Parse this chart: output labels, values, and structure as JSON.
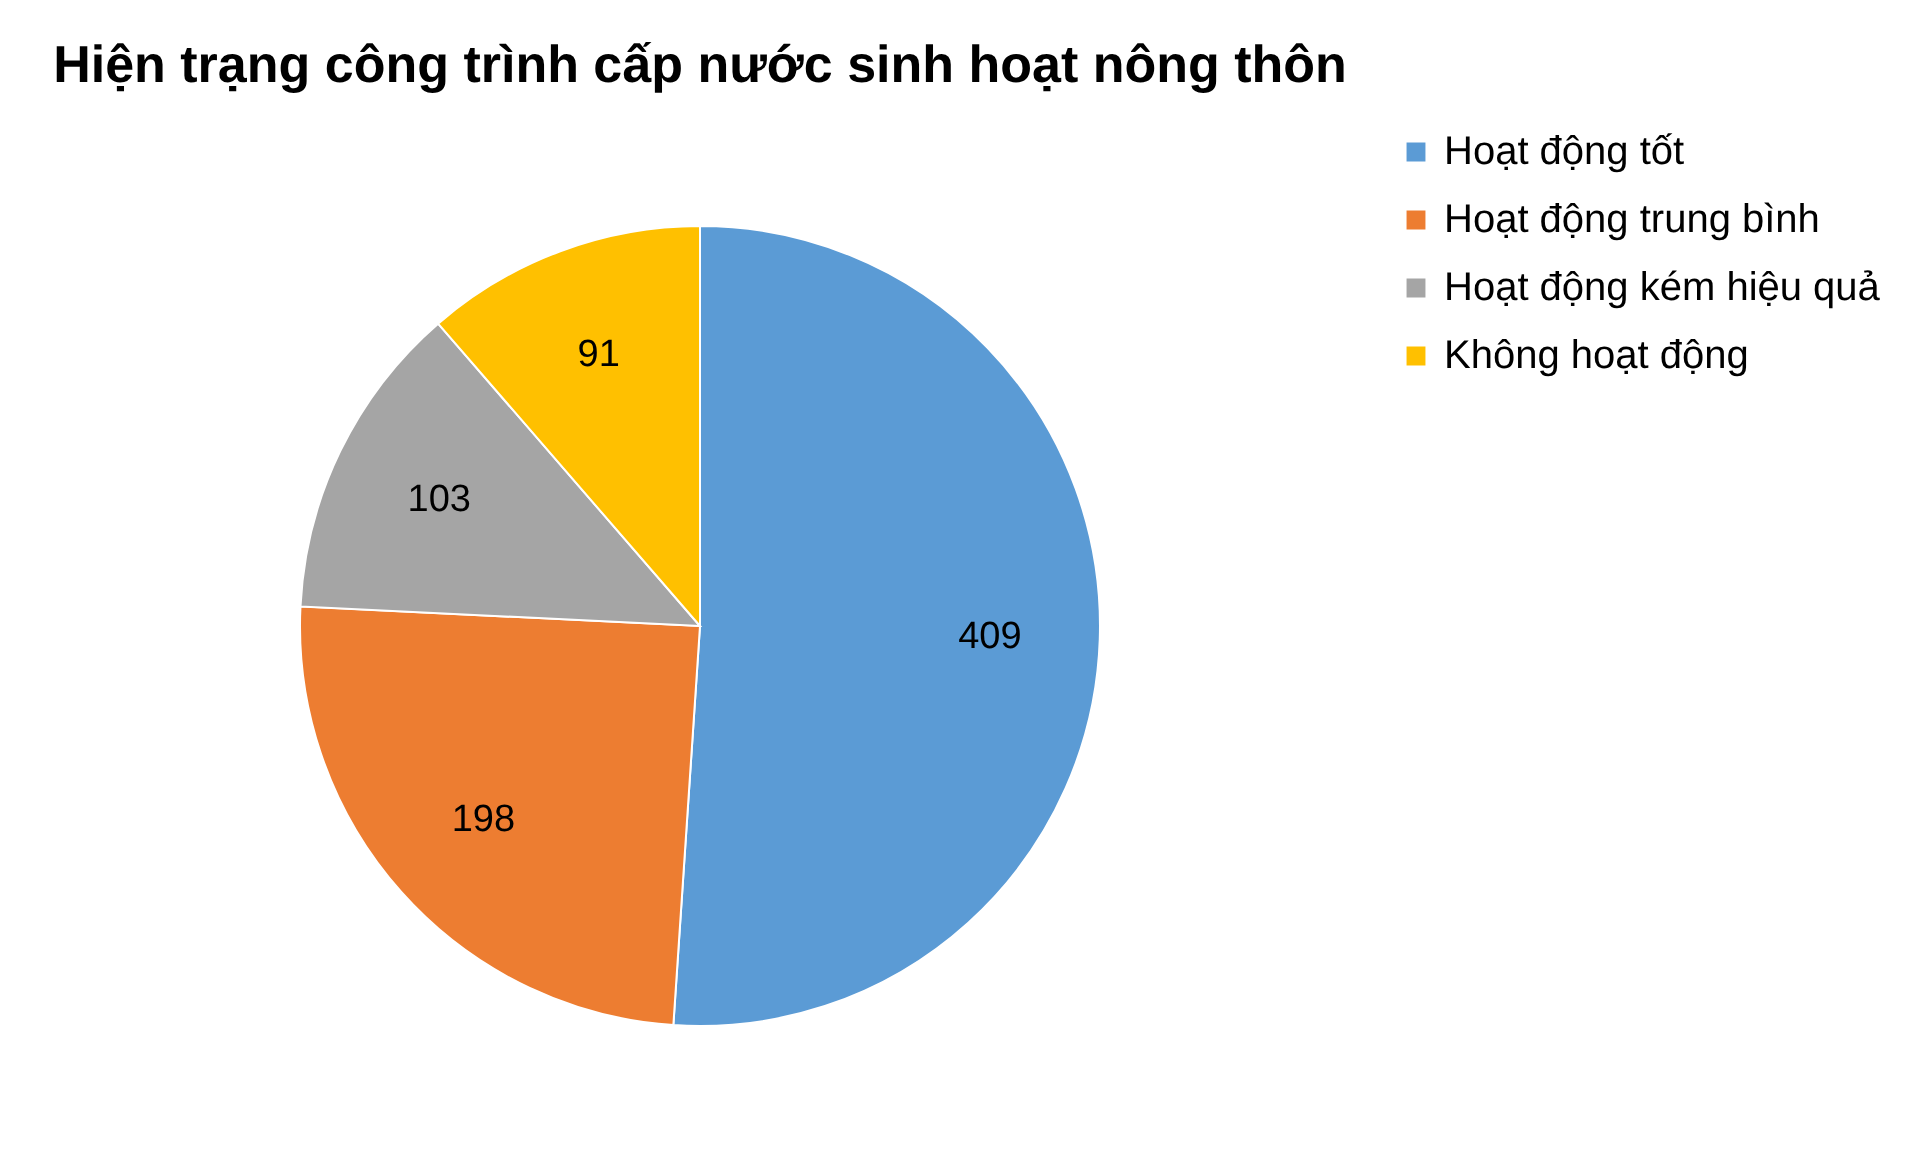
{
  "chart_data": {
    "type": "pie",
    "title": "Hiện trạng công trình cấp nước sinh hoạt nông thôn",
    "categories": [
      "Hoạt động tốt",
      "Hoạt động trung bình",
      "Hoạt động kém hiệu quả",
      "Không hoạt động"
    ],
    "values": [
      409,
      198,
      103,
      91
    ],
    "colors": [
      "#5b9bd5",
      "#ed7d31",
      "#a5a5a5",
      "#ffc000"
    ],
    "data_labels": true,
    "legend": "right"
  }
}
